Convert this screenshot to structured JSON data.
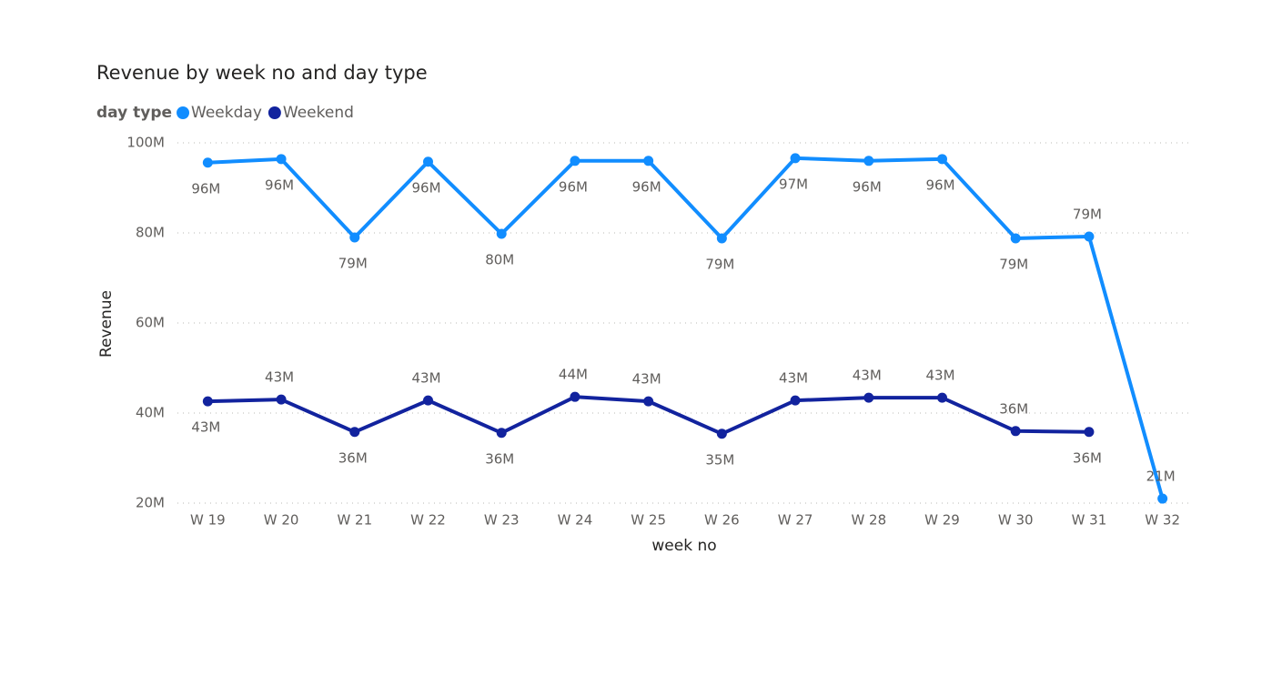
{
  "chart_data": {
    "type": "line",
    "title": "Revenue by week no and day type",
    "legend_title": "day type",
    "legend_position": "top-left",
    "x_label": "week no",
    "y_label": "Revenue",
    "categories": [
      "W 19",
      "W 20",
      "W 21",
      "W 22",
      "W 23",
      "W 24",
      "W 25",
      "W 26",
      "W 27",
      "W 28",
      "W 29",
      "W 30",
      "W 31",
      "W 32"
    ],
    "series": [
      {
        "name": "Weekday",
        "color": "#118DFF",
        "values": [
          95.6,
          96.4,
          79.0,
          95.8,
          79.8,
          96.0,
          96.0,
          78.8,
          96.6,
          96.0,
          96.4,
          78.8,
          79.2,
          21.0
        ],
        "value_labels": [
          "96M",
          "96M",
          "79M",
          "96M",
          "80M",
          "96M",
          "96M",
          "79M",
          "97M",
          "96M",
          "96M",
          "79M",
          "79M",
          "21M"
        ]
      },
      {
        "name": "Weekend",
        "color": "#12239E",
        "values": [
          42.6,
          43.0,
          35.8,
          42.8,
          35.6,
          43.6,
          42.6,
          35.4,
          42.8,
          43.4,
          43.4,
          36.0,
          35.8,
          null
        ],
        "value_labels": [
          "43M",
          "43M",
          "36M",
          "43M",
          "36M",
          "44M",
          "43M",
          "35M",
          "43M",
          "43M",
          "43M",
          "36M",
          "36M",
          null
        ]
      }
    ],
    "ylim": [
      20,
      100
    ],
    "yticks": [
      {
        "value": 20,
        "label": "20M"
      },
      {
        "value": 40,
        "label": "40M"
      },
      {
        "value": 60,
        "label": "60M"
      },
      {
        "value": 80,
        "label": "80M"
      },
      {
        "value": 100,
        "label": "100M"
      }
    ],
    "grid": true
  }
}
